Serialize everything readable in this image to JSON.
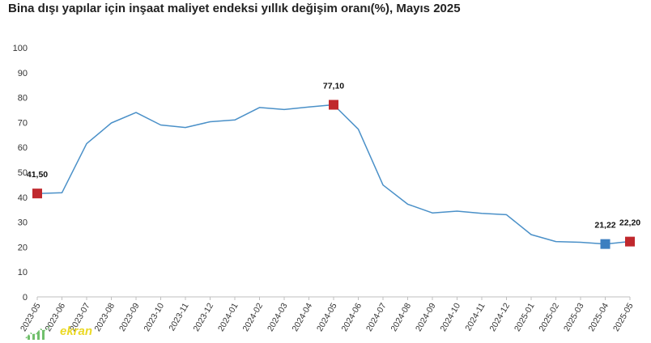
{
  "title": "Bina dışı yapılar için inşaat maliyet endeksi yıllık değişim oranı(%), Mayıs 2025",
  "watermark": {
    "text": "ekran",
    "icon": "bar-chart-icon",
    "color": "#e8d300"
  },
  "colors": {
    "line": "#4a90c8",
    "highlight_red": "#c0282d",
    "highlight_blue": "#3c7fc0",
    "axis": "#bfbfbf"
  },
  "chart_data": {
    "type": "line",
    "title": "Bina dışı yapılar için inşaat maliyet endeksi yıllık değişim oranı(%), Mayıs 2025",
    "xlabel": "",
    "ylabel": "",
    "ylim": [
      0,
      100
    ],
    "yticks": [
      0,
      10,
      20,
      30,
      40,
      50,
      60,
      70,
      80,
      90,
      100
    ],
    "grid": false,
    "categories": [
      "2023-05",
      "2023-06",
      "2023-07",
      "2023-08",
      "2023-09",
      "2023-10",
      "2023-11",
      "2023-12",
      "2024-01",
      "2024-02",
      "2024-03",
      "2024-04",
      "2024-05",
      "2024-06",
      "2024-07",
      "2024-08",
      "2024-09",
      "2024-10",
      "2024-11",
      "2024-12",
      "2025-01",
      "2025-02",
      "2025-03",
      "2025-04",
      "2025-05"
    ],
    "series": [
      {
        "values": [
          41.5,
          41.8,
          61.5,
          69.8,
          74.0,
          69.0,
          68.0,
          70.3,
          71.0,
          76.0,
          75.2,
          76.2,
          77.1,
          67.3,
          44.9,
          37.2,
          33.7,
          34.4,
          33.5,
          33.0,
          25.0,
          22.2,
          21.9,
          21.22,
          22.2
        ]
      }
    ],
    "highlighted_points": [
      {
        "index": 0,
        "label": "41,50",
        "marker_color": "#c0282d"
      },
      {
        "index": 12,
        "label": "77,10",
        "marker_color": "#c0282d"
      },
      {
        "index": 23,
        "label": "21,22",
        "marker_color": "#3c7fc0"
      },
      {
        "index": 24,
        "label": "22,20",
        "marker_color": "#c0282d"
      }
    ]
  }
}
